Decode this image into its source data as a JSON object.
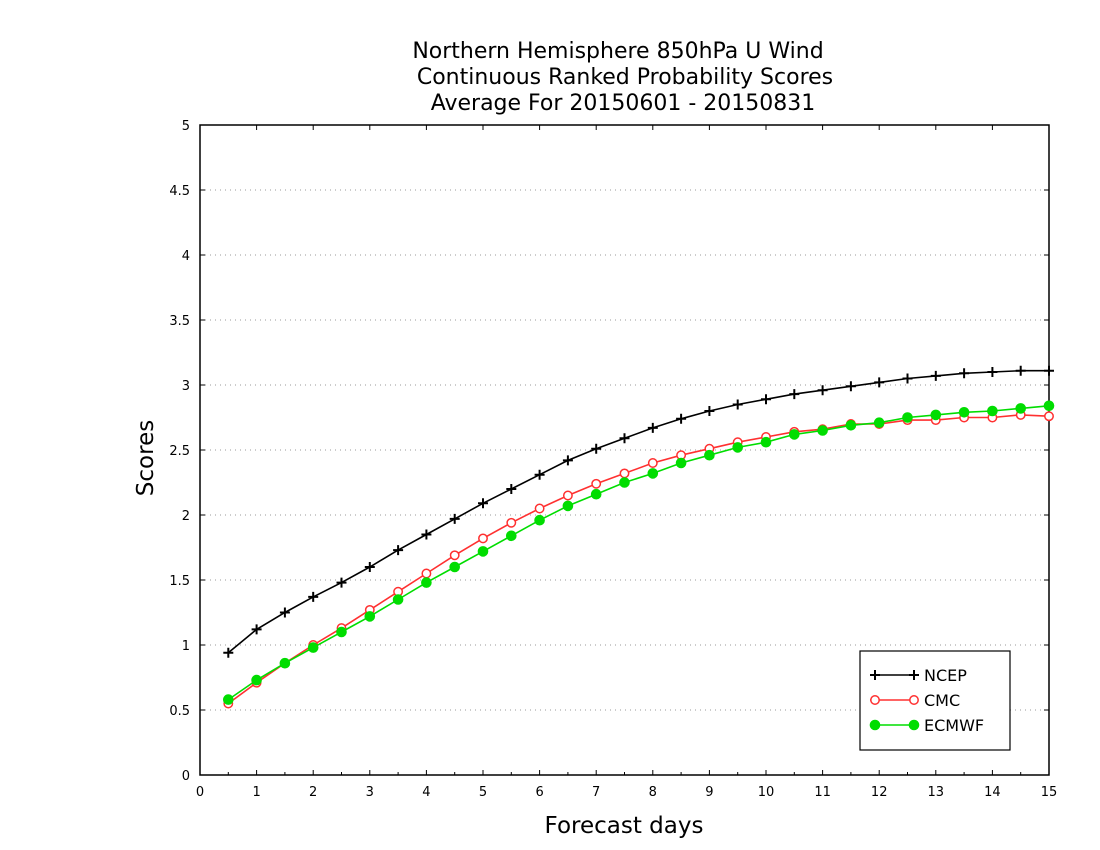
{
  "chart_data": {
    "type": "line",
    "title": [
      "Northern Hemisphere 850hPa U Wind",
      "Continuous Ranked Probability Scores",
      "Average For 20150601 - 20150831"
    ],
    "xlabel": "Forecast days",
    "ylabel": "Scores",
    "xlim": [
      0,
      15
    ],
    "ylim": [
      0,
      5
    ],
    "xticks": [
      "0",
      "1",
      "2",
      "3",
      "4",
      "5",
      "6",
      "7",
      "8",
      "9",
      "10",
      "11",
      "12",
      "13",
      "14",
      "15"
    ],
    "yticks": [
      "0",
      "0.5",
      "1",
      "1.5",
      "2",
      "2.5",
      "3",
      "3.5",
      "4",
      "4.5",
      "5"
    ],
    "grid": "horizontal dotted",
    "legend_position": "bottom-right",
    "x": [
      0.5,
      1,
      1.5,
      2,
      2.5,
      3,
      3.5,
      4,
      4.5,
      5,
      5.5,
      6,
      6.5,
      7,
      7.5,
      8,
      8.5,
      9,
      9.5,
      10,
      10.5,
      11,
      11.5,
      12,
      12.5,
      13,
      13.5,
      14,
      14.5,
      15
    ],
    "series": [
      {
        "name": "NCEP",
        "color": "#000000",
        "marker": "plus",
        "values": [
          0.94,
          1.12,
          1.25,
          1.37,
          1.48,
          1.6,
          1.73,
          1.85,
          1.97,
          2.09,
          2.2,
          2.31,
          2.42,
          2.51,
          2.59,
          2.67,
          2.74,
          2.8,
          2.85,
          2.89,
          2.93,
          2.96,
          2.99,
          3.02,
          3.05,
          3.07,
          3.09,
          3.1,
          3.11,
          3.11
        ]
      },
      {
        "name": "CMC",
        "color": "#ff3030",
        "marker": "open-circle",
        "values": [
          0.55,
          0.71,
          0.86,
          1.0,
          1.13,
          1.27,
          1.41,
          1.55,
          1.69,
          1.82,
          1.94,
          2.05,
          2.15,
          2.24,
          2.32,
          2.4,
          2.46,
          2.51,
          2.56,
          2.6,
          2.64,
          2.66,
          2.7,
          2.7,
          2.73,
          2.73,
          2.75,
          2.75,
          2.77,
          2.76
        ]
      },
      {
        "name": "ECMWF",
        "color": "#00dd00",
        "marker": "filled-circle",
        "values": [
          0.58,
          0.73,
          0.86,
          0.98,
          1.1,
          1.22,
          1.35,
          1.48,
          1.6,
          1.72,
          1.84,
          1.96,
          2.07,
          2.16,
          2.25,
          2.32,
          2.4,
          2.46,
          2.52,
          2.56,
          2.62,
          2.65,
          2.69,
          2.71,
          2.75,
          2.77,
          2.79,
          2.8,
          2.82,
          2.84
        ]
      }
    ]
  }
}
